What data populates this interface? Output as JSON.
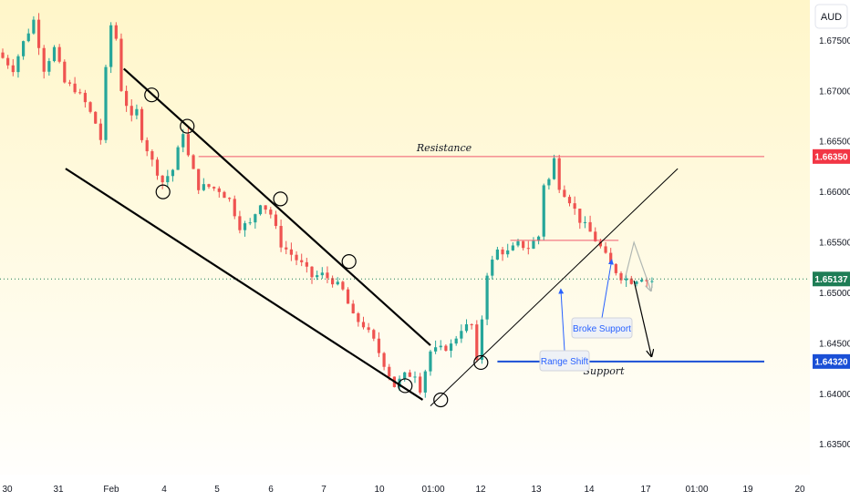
{
  "currency_button": "AUD",
  "colors": {
    "up": "#26a69a",
    "down": "#ef5350",
    "resistance": "#f05a6e",
    "support": "#1a4fd6",
    "channel": "#000000",
    "current_price_tag": "#1e7d56",
    "resistance_tag": "#f23645",
    "support_tag": "#1a4fd6",
    "callout_text": "#2962ff",
    "grey_arrow": "#b0b7b3",
    "bg_top": "#fff6c9",
    "bg_bottom": "#ffffff"
  },
  "chart_data": {
    "type": "candlestick",
    "symbol_currency": "AUD",
    "x_ticks": [
      "30",
      "31",
      "Feb",
      "4",
      "5",
      "6",
      "7",
      "10",
      "01:00",
      "12",
      "13",
      "14",
      "17",
      "01:00",
      "19",
      "20"
    ],
    "y_ticks": [
      "1.67500",
      "1.67000",
      "1.66500",
      "1.66000",
      "1.65500",
      "1.65000",
      "1.64500",
      "1.64000",
      "1.63500"
    ],
    "ylim": [
      1.632,
      1.679
    ],
    "price_labels": {
      "resistance": "1.66350",
      "current": "1.65137",
      "support": "1.64320"
    },
    "levels": {
      "resistance": 1.6635,
      "support": 1.6432,
      "current": 1.65137,
      "range_shift": 1.6552
    },
    "annotations": {
      "resistance_label": "Resistance",
      "support_label": "Support",
      "range_shift_label": "Range Shift",
      "broke_support_label": "Broke Support"
    },
    "price_path": [
      [
        0,
        1.6738
      ],
      [
        3,
        1.6722
      ],
      [
        5,
        1.6748
      ],
      [
        7,
        1.677
      ],
      [
        9,
        1.6722
      ],
      [
        11,
        1.6742
      ],
      [
        13,
        1.6708
      ],
      [
        15,
        1.6702
      ],
      [
        17,
        1.6688
      ],
      [
        19,
        1.6668
      ],
      [
        20,
        1.6652
      ],
      [
        21,
        1.672
      ],
      [
        22,
        1.6765
      ],
      [
        23,
        1.6752
      ],
      [
        24,
        1.6702
      ],
      [
        26,
        1.6672
      ],
      [
        27,
        1.668
      ],
      [
        28,
        1.6655
      ],
      [
        30,
        1.663
      ],
      [
        32,
        1.661
      ],
      [
        34,
        1.6622
      ],
      [
        36,
        1.666
      ],
      [
        37,
        1.6635
      ],
      [
        39,
        1.6605
      ],
      [
        41,
        1.6605
      ],
      [
        43,
        1.6602
      ],
      [
        45,
        1.6592
      ],
      [
        47,
        1.6566
      ],
      [
        49,
        1.6568
      ],
      [
        51,
        1.659
      ],
      [
        53,
        1.6578
      ],
      [
        55,
        1.6548
      ],
      [
        57,
        1.6538
      ],
      [
        59,
        1.6528
      ],
      [
        61,
        1.6516
      ],
      [
        63,
        1.6518
      ],
      [
        65,
        1.6512
      ],
      [
        67,
        1.6502
      ],
      [
        69,
        1.6476
      ],
      [
        71,
        1.6468
      ],
      [
        73,
        1.6452
      ],
      [
        75,
        1.643
      ],
      [
        77,
        1.6408
      ],
      [
        79,
        1.6418
      ],
      [
        81,
        1.642
      ],
      [
        82,
        1.6405
      ],
      [
        84,
        1.6442
      ],
      [
        86,
        1.6444
      ],
      [
        88,
        1.6448
      ],
      [
        90,
        1.6465
      ],
      [
        92,
        1.6468
      ],
      [
        93,
        1.643
      ],
      [
        95,
        1.652
      ],
      [
        97,
        1.6542
      ],
      [
        99,
        1.654
      ],
      [
        101,
        1.6548
      ],
      [
        103,
        1.6545
      ],
      [
        105,
        1.6556
      ],
      [
        106,
        1.6608
      ],
      [
        107,
        1.6612
      ],
      [
        108,
        1.6632
      ],
      [
        109,
        1.6606
      ],
      [
        111,
        1.6592
      ],
      [
        113,
        1.6572
      ],
      [
        115,
        1.656
      ],
      [
        117,
        1.6545
      ],
      [
        119,
        1.6527
      ],
      [
        121,
        1.6516
      ],
      [
        123,
        1.6512
      ],
      [
        125,
        1.6516
      ],
      [
        126,
        1.6512
      ]
    ],
    "candle_count": 127,
    "channel": {
      "upper": [
        {
          "bar": 23.5,
          "price": 1.6722
        },
        {
          "bar": 83,
          "price": 1.6448
        }
      ],
      "lower": [
        {
          "bar": 12.2,
          "price": 1.6623
        },
        {
          "bar": 81.5,
          "price": 1.6394
        }
      ]
    },
    "uptrend_line": [
      {
        "bar": 83,
        "price": 1.6388
      },
      {
        "bar": 131,
        "price": 1.6623
      }
    ],
    "circled_points": [
      {
        "bar": 28.9,
        "price": 1.6696
      },
      {
        "bar": 31.1,
        "price": 1.66
      },
      {
        "bar": 35.8,
        "price": 1.6665
      },
      {
        "bar": 53.9,
        "price": 1.6593
      },
      {
        "bar": 67.2,
        "price": 1.6531
      },
      {
        "bar": 78.1,
        "price": 1.6408
      },
      {
        "bar": 85.0,
        "price": 1.6394
      },
      {
        "bar": 92.8,
        "price": 1.6431
      }
    ],
    "projection_arrows": [
      {
        "style": "grey",
        "points": [
          {
            "bar": 120.8,
            "price": 1.6515
          },
          {
            "bar": 122.5,
            "price": 1.655
          },
          {
            "bar": 125.8,
            "price": 1.6502
          }
        ]
      },
      {
        "style": "black",
        "points": [
          {
            "bar": 122.5,
            "price": 1.6512
          },
          {
            "bar": 125.9,
            "price": 1.6437
          }
        ]
      }
    ]
  }
}
